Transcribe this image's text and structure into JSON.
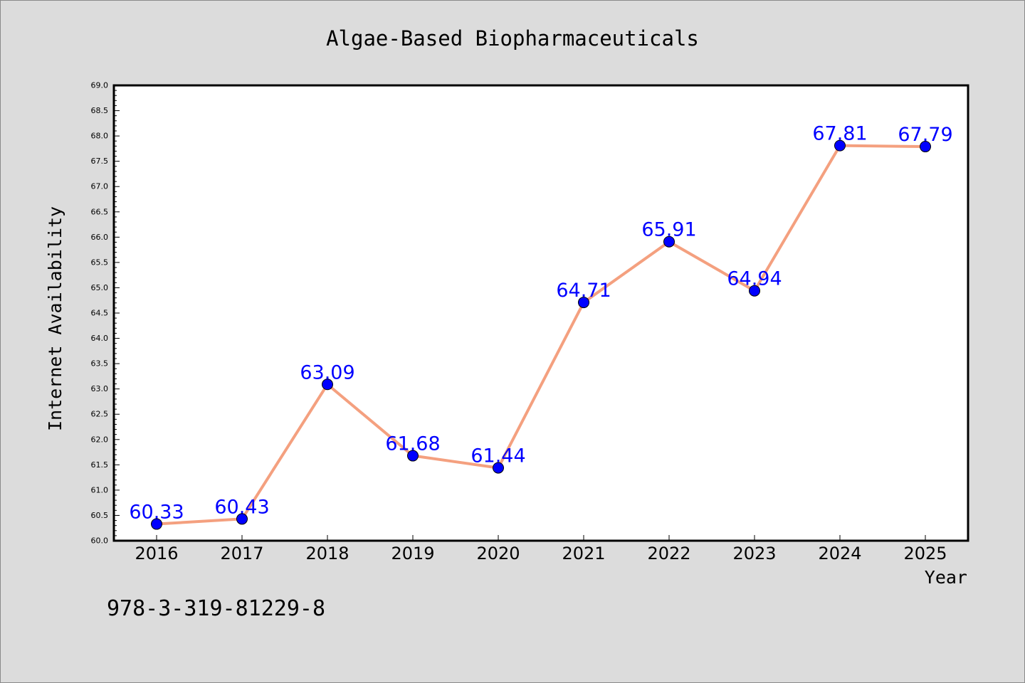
{
  "chart_data": {
    "type": "line",
    "title": "Algae-Based Biopharmaceuticals",
    "xlabel": "Year",
    "ylabel": "Internet Availability",
    "categories": [
      "2016",
      "2017",
      "2018",
      "2019",
      "2020",
      "2021",
      "2022",
      "2023",
      "2024",
      "2025"
    ],
    "series": [
      {
        "values": [
          60.33,
          60.43,
          63.09,
          61.68,
          61.44,
          64.71,
          65.91,
          64.94,
          67.81,
          67.79
        ],
        "data_labels": [
          "60.33",
          "60.43",
          "63.09",
          "61.68",
          "61.44",
          "64.71",
          "65.91",
          "64.94",
          "67.81",
          "67.79"
        ]
      }
    ],
    "ylim": [
      60.0,
      69.0
    ],
    "yticks": [
      "60.0",
      "60.5",
      "61.0",
      "61.5",
      "62.0",
      "62.5",
      "63.0",
      "63.5",
      "64.0",
      "64.5",
      "65.0",
      "65.5",
      "66.0",
      "66.5",
      "67.0",
      "67.5",
      "68.0",
      "68.5",
      "69.0"
    ],
    "grid": false,
    "legend": "none",
    "colors": {
      "line": "#f4a07f",
      "marker": "#0000ff",
      "data_label": "#0000ff",
      "plot_background": "#ffffff",
      "figure_background": "#dcdcdc"
    }
  },
  "footer": {
    "isbn": "978-3-319-81229-8"
  }
}
